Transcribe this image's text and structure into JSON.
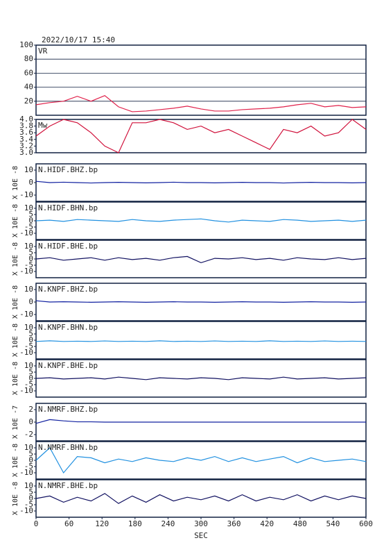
{
  "chart_data": [
    {
      "type": "line",
      "title": "2022/10/17 15:40",
      "xlim": [
        0,
        600
      ],
      "ylim": [
        0,
        100
      ],
      "yticks": [
        20,
        40,
        60,
        80,
        100
      ],
      "grid": true,
      "x": [
        0,
        25,
        50,
        75,
        100,
        125,
        150,
        175,
        200,
        225,
        250,
        275,
        300,
        325,
        350,
        375,
        400,
        425,
        450,
        475,
        500,
        525,
        550,
        575,
        600
      ],
      "series": [
        {
          "name": "VR",
          "color": "#e0204a",
          "values": [
            15,
            18,
            20,
            27,
            20,
            28,
            12,
            5,
            6,
            8,
            10,
            13,
            9,
            6,
            6,
            8,
            9,
            10,
            12,
            15,
            17,
            12,
            14,
            11,
            12
          ]
        }
      ]
    },
    {
      "type": "line",
      "xlim": [
        0,
        600
      ],
      "ylim": [
        3,
        4
      ],
      "yticks": [
        {
          "value": 3,
          "label": "3.0"
        },
        3.2,
        3.4,
        3.6,
        3.8,
        {
          "value": 4,
          "label": "4.0"
        }
      ],
      "grid": false,
      "x": [
        0,
        25,
        50,
        75,
        100,
        125,
        150,
        175,
        200,
        225,
        250,
        275,
        300,
        325,
        350,
        375,
        400,
        425,
        450,
        475,
        500,
        525,
        550,
        575,
        600
      ],
      "series": [
        {
          "name": "Mw",
          "color": "#d0103a",
          "values": [
            3.5,
            3.8,
            4.0,
            3.9,
            3.6,
            3.2,
            3.0,
            3.9,
            3.9,
            4.0,
            3.9,
            3.7,
            3.8,
            3.6,
            3.7,
            3.5,
            3.3,
            3.1,
            3.7,
            3.6,
            3.8,
            3.5,
            3.6,
            4.0,
            3.7
          ]
        }
      ]
    },
    {
      "type": "line",
      "xlim": [
        0,
        600
      ],
      "ylim": [
        -15,
        15
      ],
      "yticks": [
        10,
        0,
        -10
      ],
      "grid": false,
      "ylabel": "X 10E -8",
      "x": [
        0,
        25,
        50,
        75,
        100,
        125,
        150,
        175,
        200,
        225,
        250,
        275,
        300,
        325,
        350,
        375,
        400,
        425,
        450,
        475,
        500,
        525,
        550,
        575,
        600
      ],
      "series": [
        {
          "name": "N.HIDF.BHZ.bp",
          "color": "#1020a0",
          "values": [
            1,
            0,
            0.3,
            0,
            -0.3,
            0,
            0.2,
            0,
            -0.2,
            0,
            0.3,
            0,
            0,
            -0.2,
            0,
            0.2,
            0,
            0,
            -0.3,
            0,
            0.2,
            0,
            0,
            -0.2,
            0
          ]
        }
      ]
    },
    {
      "type": "line",
      "xlim": [
        0,
        600
      ],
      "ylim": [
        -15,
        15
      ],
      "yticks": [
        10,
        5,
        0,
        -5,
        -10
      ],
      "grid": false,
      "ylabel": "X 10E -8",
      "x": [
        0,
        25,
        50,
        75,
        100,
        125,
        150,
        175,
        200,
        225,
        250,
        275,
        300,
        325,
        350,
        375,
        400,
        425,
        450,
        475,
        500,
        525,
        550,
        575,
        600
      ],
      "series": [
        {
          "name": "N.HIDF.BHN.bp",
          "color": "#2090e0",
          "values": [
            0,
            0.5,
            -0.5,
            1,
            0.5,
            0,
            -0.5,
            1,
            0,
            -0.5,
            0.5,
            1,
            1.5,
            0,
            -1,
            0.5,
            0,
            -0.5,
            1,
            0.5,
            -0.5,
            0,
            0.5,
            -0.5,
            0.5
          ]
        }
      ]
    },
    {
      "type": "line",
      "xlim": [
        0,
        600
      ],
      "ylim": [
        -15,
        15
      ],
      "yticks": [
        10,
        5,
        0,
        -5,
        -10
      ],
      "grid": false,
      "ylabel": "X 10E -8",
      "x": [
        0,
        25,
        50,
        75,
        100,
        125,
        150,
        175,
        200,
        225,
        250,
        275,
        300,
        325,
        350,
        375,
        400,
        425,
        450,
        475,
        500,
        525,
        550,
        575,
        600
      ],
      "series": [
        {
          "name": "N.HIDF.BHE.bp",
          "color": "#101060",
          "values": [
            0,
            1,
            -1,
            0,
            1,
            -1,
            1,
            -0.5,
            0.5,
            -1,
            1,
            2,
            -3,
            0.5,
            0,
            1,
            -0.5,
            0.5,
            -1,
            1,
            0,
            -0.5,
            1,
            -0.5,
            0.5
          ]
        }
      ]
    },
    {
      "type": "line",
      "xlim": [
        0,
        600
      ],
      "ylim": [
        -15,
        15
      ],
      "yticks": [
        10,
        0,
        -10
      ],
      "grid": false,
      "ylabel": "X 10E -8",
      "x": [
        0,
        25,
        50,
        75,
        100,
        125,
        150,
        175,
        200,
        225,
        250,
        275,
        300,
        325,
        350,
        375,
        400,
        425,
        450,
        475,
        500,
        525,
        550,
        575,
        600
      ],
      "series": [
        {
          "name": "N.KNPF.BHZ.bp",
          "color": "#1020a0",
          "values": [
            1,
            0,
            0.2,
            0,
            -0.2,
            0,
            0.2,
            0,
            -0.2,
            0,
            0.2,
            0,
            0,
            -0.2,
            0,
            0.2,
            0,
            0,
            -0.2,
            0,
            0.2,
            0,
            0,
            -0.2,
            0
          ]
        }
      ]
    },
    {
      "type": "line",
      "xlim": [
        0,
        600
      ],
      "ylim": [
        -15,
        15
      ],
      "yticks": [
        10,
        5,
        0,
        -5,
        -10
      ],
      "grid": false,
      "ylabel": "X 10E -8",
      "x": [
        0,
        25,
        50,
        75,
        100,
        125,
        150,
        175,
        200,
        225,
        250,
        275,
        300,
        325,
        350,
        375,
        400,
        425,
        450,
        475,
        500,
        525,
        550,
        575,
        600
      ],
      "series": [
        {
          "name": "N.KNPF.BHN.bp",
          "color": "#2090e0",
          "values": [
            -1,
            -0.5,
            -1,
            -0.8,
            -1,
            -0.6,
            -1,
            -0.8,
            -1,
            -0.5,
            -1,
            -0.8,
            -1,
            -0.6,
            -1,
            -0.8,
            -1,
            -0.5,
            -1,
            -0.8,
            -1,
            -0.6,
            -1,
            -0.8,
            -1
          ]
        }
      ]
    },
    {
      "type": "line",
      "xlim": [
        0,
        600
      ],
      "ylim": [
        -15,
        15
      ],
      "yticks": [
        10,
        5,
        0,
        -5,
        -10
      ],
      "grid": false,
      "ylabel": "X 10E -8",
      "x": [
        0,
        25,
        50,
        75,
        100,
        125,
        150,
        175,
        200,
        225,
        250,
        275,
        300,
        325,
        350,
        375,
        400,
        425,
        450,
        475,
        500,
        525,
        550,
        575,
        600
      ],
      "series": [
        {
          "name": "N.KNPF.BHE.bp",
          "color": "#101060",
          "values": [
            0,
            0.5,
            -0.5,
            0,
            0.5,
            -0.5,
            1,
            0,
            -1,
            0.5,
            0,
            -0.5,
            0.5,
            0,
            -1,
            0.5,
            0,
            -0.5,
            1,
            -0.5,
            0,
            0.5,
            -0.5,
            0,
            0.5
          ]
        }
      ]
    },
    {
      "type": "line",
      "xlim": [
        0,
        600
      ],
      "ylim": [
        -3,
        3
      ],
      "yticks": [
        2,
        0,
        -2
      ],
      "grid": false,
      "ylabel": "X 10E -7",
      "x": [
        0,
        25,
        50,
        75,
        100,
        125,
        150,
        175,
        200,
        225,
        250,
        275,
        300,
        325,
        350,
        375,
        400,
        425,
        450,
        475,
        500,
        525,
        550,
        575,
        600
      ],
      "series": [
        {
          "name": "N.NMRF.BHZ.bp",
          "color": "#1020a0",
          "values": [
            -0.2,
            0.4,
            0.2,
            0.05,
            0.05,
            0,
            0,
            0,
            0,
            0,
            0,
            0,
            0,
            0,
            0,
            0,
            0,
            0,
            0,
            0,
            0,
            0,
            0,
            0,
            0
          ]
        }
      ]
    },
    {
      "type": "line",
      "xlim": [
        0,
        600
      ],
      "ylim": [
        -15,
        15
      ],
      "yticks": [
        10,
        5,
        0,
        -5,
        -10
      ],
      "grid": false,
      "ylabel": "X 10E -8",
      "x": [
        0,
        25,
        50,
        75,
        100,
        125,
        150,
        175,
        200,
        225,
        250,
        275,
        300,
        325,
        350,
        375,
        400,
        425,
        450,
        475,
        500,
        525,
        550,
        575,
        600
      ],
      "series": [
        {
          "name": "N.NMRF.BHN.bp",
          "color": "#2090e0",
          "values": [
            0,
            10,
            -10,
            3,
            2,
            -2,
            1,
            -1,
            2,
            0,
            -1,
            2,
            0,
            3,
            -1,
            2,
            -1,
            1,
            3,
            -2,
            2,
            -1,
            0,
            1,
            -1
          ]
        }
      ]
    },
    {
      "type": "line",
      "xlim": [
        0,
        600
      ],
      "ylim": [
        -15,
        15
      ],
      "yticks": [
        10,
        5,
        0,
        -5,
        -10
      ],
      "grid": false,
      "ylabel": "X 10E -8",
      "xticks": [
        0,
        60,
        120,
        180,
        240,
        300,
        360,
        420,
        480,
        540,
        600
      ],
      "xlabel": "SEC",
      "x": [
        0,
        25,
        50,
        75,
        100,
        125,
        150,
        175,
        200,
        225,
        250,
        275,
        300,
        325,
        350,
        375,
        400,
        425,
        450,
        475,
        500,
        525,
        550,
        575,
        600
      ],
      "series": [
        {
          "name": "N.NMRF.BHE.bp",
          "color": "#101060",
          "values": [
            0,
            2,
            -3,
            1,
            -2,
            4,
            -4,
            2,
            -3,
            3,
            -2,
            1,
            -1,
            2,
            -2,
            3,
            -2,
            1,
            -1,
            3,
            -2,
            2,
            -1,
            2,
            0
          ]
        }
      ]
    }
  ]
}
